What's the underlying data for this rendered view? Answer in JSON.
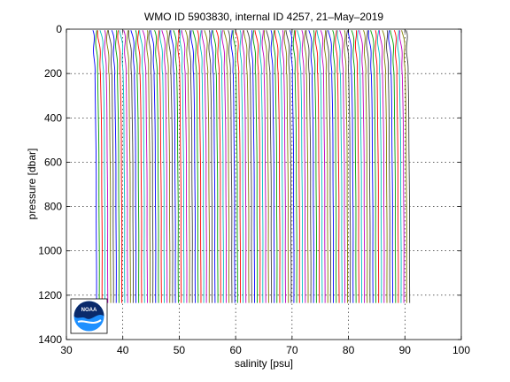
{
  "chart_data": {
    "type": "line",
    "title": "WMO ID 5903830, internal ID 4257, 21–May–2019",
    "xlabel": "salinity [psu]",
    "ylabel": "pressure [dbar]",
    "xlim": [
      30,
      100
    ],
    "ylim": [
      1400,
      0
    ],
    "y_reversed": true,
    "grid": true,
    "x_ticks": [
      "30",
      "40",
      "50",
      "60",
      "70",
      "80",
      "90",
      "100"
    ],
    "y_ticks": [
      "0",
      "200",
      "400",
      "600",
      "800",
      "1000",
      "1200",
      "1400"
    ],
    "series_colors": [
      "#0000ff",
      "#00a000",
      "#ff0000",
      "#00bfbf",
      "#bf00bf",
      "#808000",
      "#404040"
    ],
    "profiles": {
      "count": 112,
      "first_offset_psu": 34.6,
      "offset_step_psu": 0.5,
      "surface_salinity_psu": 33.9,
      "salinity_at_200dbar_psu": 34.35,
      "deep_salinity_psu": 34.65,
      "max_pressure_dbar": 1240,
      "min_pressure_dbar": 5
    },
    "logo": {
      "name": "noaa-logo",
      "text": "NOAA",
      "colors": [
        "#0a2a6b",
        "#1e90ff",
        "#ffffff"
      ]
    }
  }
}
